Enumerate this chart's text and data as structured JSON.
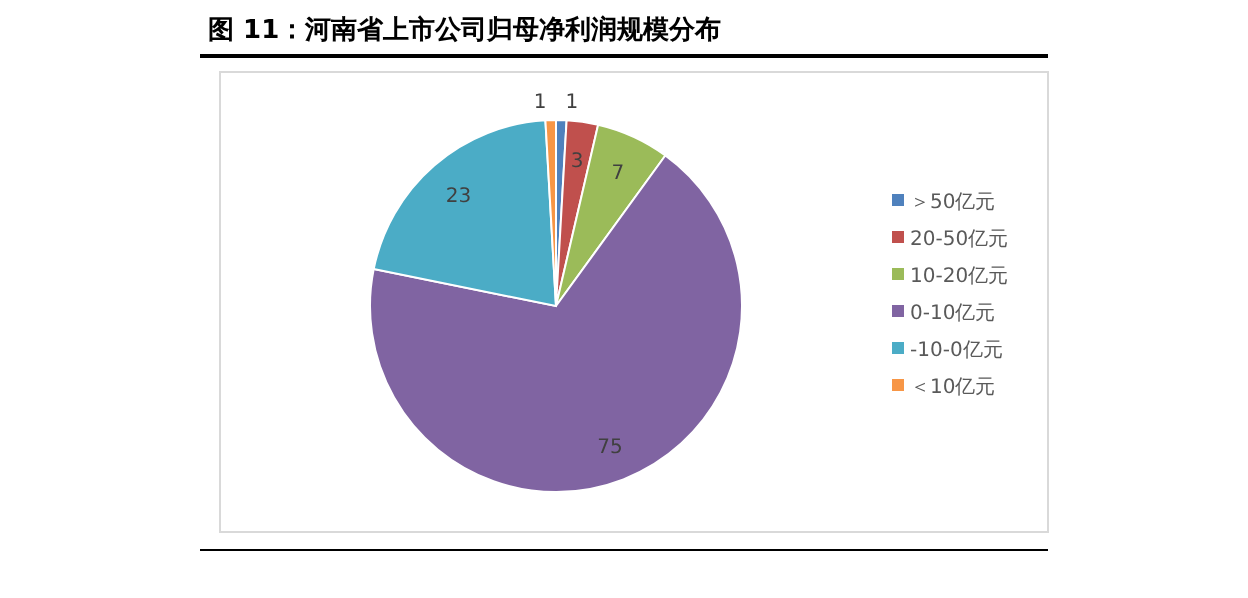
{
  "chart_data": {
    "type": "pie",
    "title": "图 11：河南省上市公司归母净利润规模分布",
    "categories": [
      "＞50亿元",
      "20-50亿元",
      "10-20亿元",
      "0-10亿元",
      "-10-0亿元",
      "＜10亿元"
    ],
    "values": [
      1,
      3,
      7,
      75,
      23,
      1
    ],
    "colors": [
      "#4f81bd",
      "#c0504d",
      "#9bbb59",
      "#8064a2",
      "#4bacc6",
      "#f79646"
    ],
    "data_labels": true,
    "legend": "right"
  }
}
